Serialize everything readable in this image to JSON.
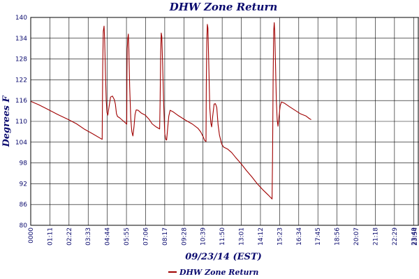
{
  "chart_data": {
    "type": "line",
    "title": "DHW Zone Return",
    "xlabel": "09/23/14 (EST)",
    "ylabel": "Degrees F",
    "ylim": [
      80,
      140
    ],
    "yticks": [
      80,
      86,
      92,
      98,
      104,
      110,
      116,
      122,
      128,
      134,
      140
    ],
    "xlim": [
      0,
      1440
    ],
    "xtick_labels": [
      "0000",
      "01:11",
      "02:22",
      "03:33",
      "04:44",
      "05:55",
      "07:06",
      "08:17",
      "09:28",
      "10:39",
      "11:50",
      "13:01",
      "14:12",
      "15:23",
      "16:34",
      "17:45",
      "18:56",
      "20:07",
      "21:18",
      "22:29",
      "23:40",
      "23:54"
    ],
    "grid": true,
    "legend_position": "bottom-left",
    "colors": {
      "series": "#a00000",
      "text": "#0a0a6e",
      "grid": "#000000"
    },
    "series": [
      {
        "name": "DHW Zone Return",
        "points": [
          [
            0,
            115.8
          ],
          [
            30,
            114.8
          ],
          [
            60,
            113.6
          ],
          [
            100,
            112.0
          ],
          [
            140,
            110.5
          ],
          [
            170,
            109.3
          ],
          [
            200,
            107.7
          ],
          [
            230,
            106.4
          ],
          [
            265,
            104.8
          ],
          [
            267,
            126
          ],
          [
            269,
            136
          ],
          [
            272,
            137.5
          ],
          [
            274,
            134
          ],
          [
            277,
            124
          ],
          [
            280,
            116
          ],
          [
            283,
            112.5
          ],
          [
            286,
            111.8
          ],
          [
            290,
            114
          ],
          [
            296,
            117
          ],
          [
            303,
            117.3
          ],
          [
            310,
            116.3
          ],
          [
            314,
            115
          ],
          [
            318,
            112.2
          ],
          [
            322,
            111.4
          ],
          [
            330,
            111.0
          ],
          [
            345,
            110.0
          ],
          [
            356,
            109.2
          ],
          [
            357,
            124
          ],
          [
            358,
            131
          ],
          [
            360,
            134
          ],
          [
            362,
            135.2
          ],
          [
            364,
            131
          ],
          [
            367,
            120
          ],
          [
            371,
            111
          ],
          [
            375,
            107
          ],
          [
            379,
            105.8
          ],
          [
            383,
            108.5
          ],
          [
            387,
            112
          ],
          [
            391,
            113.3
          ],
          [
            398,
            113.2
          ],
          [
            410,
            112.4
          ],
          [
            425,
            111.8
          ],
          [
            440,
            110.5
          ],
          [
            450,
            109.3
          ],
          [
            465,
            108.4
          ],
          [
            478,
            107.8
          ],
          [
            480,
            116
          ],
          [
            482,
            130
          ],
          [
            484,
            135.5
          ],
          [
            486,
            134.5
          ],
          [
            489,
            127
          ],
          [
            493,
            115
          ],
          [
            497,
            106.5
          ],
          [
            501,
            104.8
          ],
          [
            504,
            104.6
          ],
          [
            508,
            108
          ],
          [
            512,
            111.5
          ],
          [
            517,
            113.2
          ],
          [
            527,
            112.8
          ],
          [
            545,
            111.8
          ],
          [
            575,
            110.3
          ],
          [
            600,
            109.2
          ],
          [
            620,
            108.0
          ],
          [
            630,
            107.0
          ],
          [
            640,
            105.5
          ],
          [
            645,
            104.5
          ],
          [
            650,
            104.2
          ],
          [
            651,
            120
          ],
          [
            653,
            133
          ],
          [
            655,
            138
          ],
          [
            657,
            137
          ],
          [
            660,
            128
          ],
          [
            664,
            114
          ],
          [
            668,
            109.5
          ],
          [
            671,
            108.4
          ],
          [
            675,
            111.5
          ],
          [
            680,
            115
          ],
          [
            685,
            115.1
          ],
          [
            690,
            114
          ],
          [
            695,
            109
          ],
          [
            700,
            106
          ],
          [
            708,
            103.5
          ],
          [
            715,
            102.6
          ],
          [
            730,
            102.0
          ],
          [
            745,
            101.0
          ],
          [
            760,
            99.6
          ],
          [
            780,
            97.8
          ],
          [
            800,
            95.8
          ],
          [
            820,
            94.0
          ],
          [
            840,
            92.0
          ],
          [
            860,
            90.3
          ],
          [
            880,
            88.8
          ],
          [
            895,
            87.6
          ],
          [
            897,
            100
          ],
          [
            899,
            122
          ],
          [
            901,
            136
          ],
          [
            903,
            138.5
          ],
          [
            905,
            136
          ],
          [
            908,
            126
          ],
          [
            911,
            116
          ],
          [
            914,
            110.5
          ],
          [
            917,
            108.6
          ],
          [
            921,
            111.5
          ],
          [
            925,
            114.5
          ],
          [
            930,
            115.6
          ],
          [
            940,
            115.3
          ],
          [
            960,
            114.2
          ],
          [
            980,
            113.2
          ],
          [
            1000,
            112.2
          ],
          [
            1020,
            111.6
          ],
          [
            1035,
            110.7
          ],
          [
            1040,
            110.5
          ]
        ]
      }
    ]
  }
}
